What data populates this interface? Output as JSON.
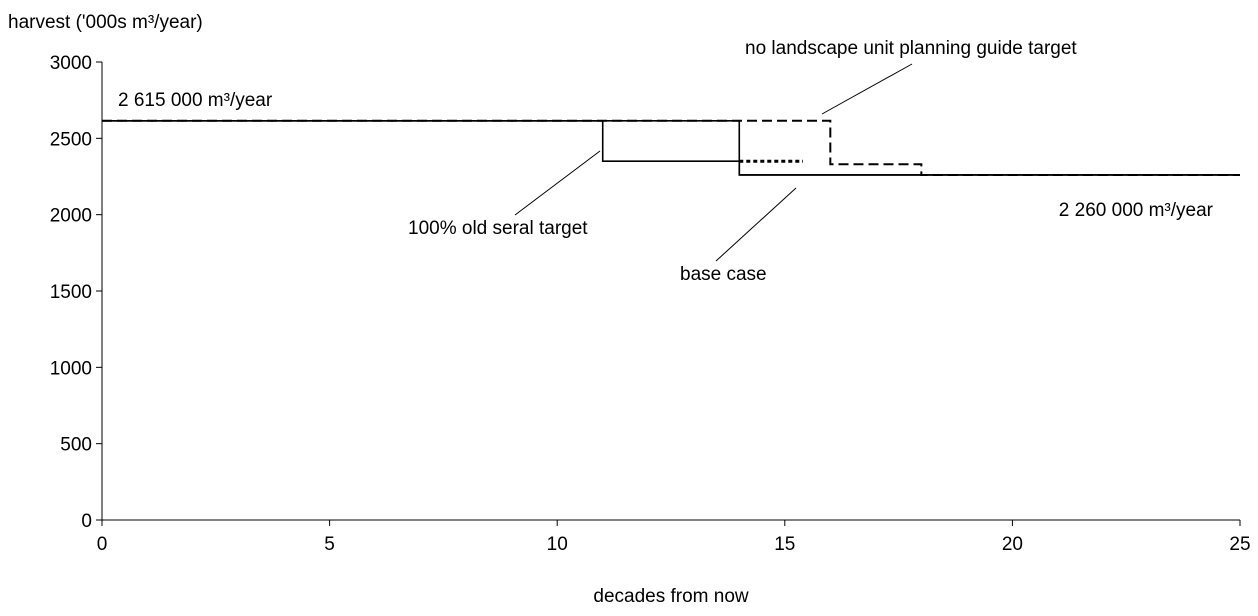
{
  "chart_data": {
    "type": "line",
    "title": "",
    "ylabel": "harvest ('000s m³/year)",
    "xlabel": "decades from now",
    "xlim": [
      0,
      25
    ],
    "ylim": [
      0,
      3000
    ],
    "x_ticks": [
      "0",
      "5",
      "10",
      "15",
      "20",
      "25"
    ],
    "y_ticks": [
      "0",
      "500",
      "1000",
      "1500",
      "2000",
      "2500",
      "3000"
    ],
    "grid": false,
    "series": [
      {
        "name": "base case",
        "style": "solid",
        "steps": [
          [
            0,
            2615
          ],
          [
            14,
            2260
          ],
          [
            25,
            2260
          ]
        ]
      },
      {
        "name": "100% old seral target",
        "style": "solid",
        "steps": [
          [
            0,
            2615
          ],
          [
            11,
            2350
          ],
          [
            14,
            2260
          ],
          [
            25,
            2260
          ]
        ]
      },
      {
        "name": "no landscape unit planning guide target",
        "style": "dashed",
        "steps": [
          [
            0,
            2615
          ],
          [
            16,
            2330
          ],
          [
            18,
            2260
          ],
          [
            25,
            2260
          ]
        ]
      },
      {
        "name": "",
        "style": "dotted",
        "steps": [
          [
            14,
            2350
          ],
          [
            15.4,
            2350
          ]
        ]
      }
    ],
    "annotations": [
      {
        "text": "2 615 000 m³/year"
      },
      {
        "text": "2 260 000 m³/year"
      },
      {
        "text": "100% old seral target"
      },
      {
        "text": "base case"
      },
      {
        "text": "no landscape unit planning guide target"
      }
    ]
  }
}
